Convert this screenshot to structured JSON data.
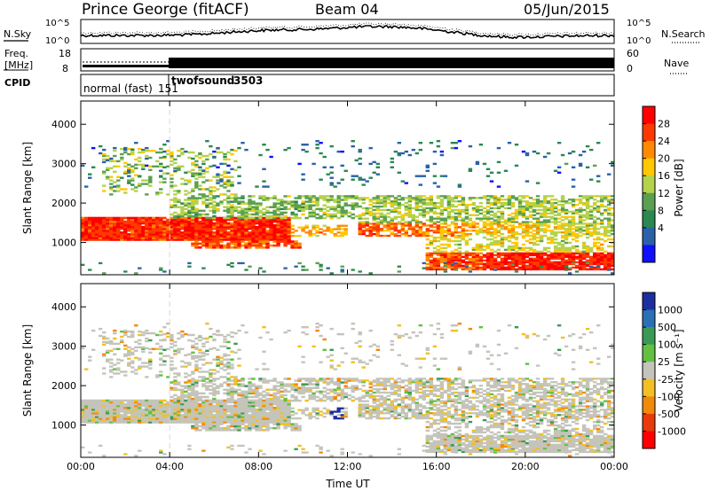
{
  "header": {
    "site": "Prince George (fitACF)",
    "beam": "Beam 04",
    "date": "05/Jun/2015"
  },
  "panels": {
    "noise": {
      "left_label": "N.Sky",
      "right_label": "N.Search",
      "ticks_left": [
        "10^5",
        "10^0"
      ],
      "ticks_right": [
        "10^5",
        "10^0"
      ]
    },
    "freq": {
      "left_label_1": "Freq.",
      "left_label_2": "[MHz]",
      "ticks_left": [
        "18",
        "8"
      ],
      "right_label": "Nave",
      "ticks_right": [
        "60",
        "0"
      ]
    },
    "cpid": {
      "label": "CPID",
      "segments": [
        {
          "name": "normal (fast)",
          "id": "151"
        },
        {
          "name": "twofsound",
          "id": "3503"
        }
      ]
    }
  },
  "chart_data": [
    {
      "type": "heatmap",
      "title": "",
      "xlabel": "Time UT",
      "ylabel": "Slant Range [km]",
      "x_ticks": [
        "00:00",
        "04:00",
        "08:00",
        "12:00",
        "16:00",
        "20:00",
        "00:00"
      ],
      "xlim_hours": [
        0,
        24
      ],
      "y_ticks": [
        1000,
        2000,
        3000,
        4000
      ],
      "ylim": [
        180,
        4590
      ],
      "colorbar": {
        "label": "Power [dB]",
        "ticks": [
          "28",
          "24",
          "20",
          "16",
          "12",
          "8",
          "4"
        ],
        "colors": [
          "#ff0000",
          "#ff3a00",
          "#ff8a00",
          "#ffc800",
          "#b4d24a",
          "#5aa050",
          "#2a8850",
          "#2a62a8",
          "#1010ff"
        ]
      }
    },
    {
      "type": "heatmap",
      "title": "",
      "xlabel": "Time UT",
      "ylabel": "Slant Range [km]",
      "x_ticks": [
        "00:00",
        "04:00",
        "08:00",
        "12:00",
        "16:00",
        "20:00",
        "00:00"
      ],
      "xlim_hours": [
        0,
        24
      ],
      "y_ticks": [
        1000,
        2000,
        3000,
        4000
      ],
      "ylim": [
        180,
        4590
      ],
      "colorbar": {
        "label": "Velocity [m s⁻¹]",
        "ticks": [
          "1000",
          "500",
          "100",
          "25",
          "-25",
          "-100",
          "-500",
          "-1000"
        ],
        "colors": [
          "#1d2ea0",
          "#2b6fb5",
          "#3a9a55",
          "#63c042",
          "#c4c4bb",
          "#f2c025",
          "#f08a0a",
          "#e83a0a",
          "#ff0000"
        ]
      }
    }
  ]
}
